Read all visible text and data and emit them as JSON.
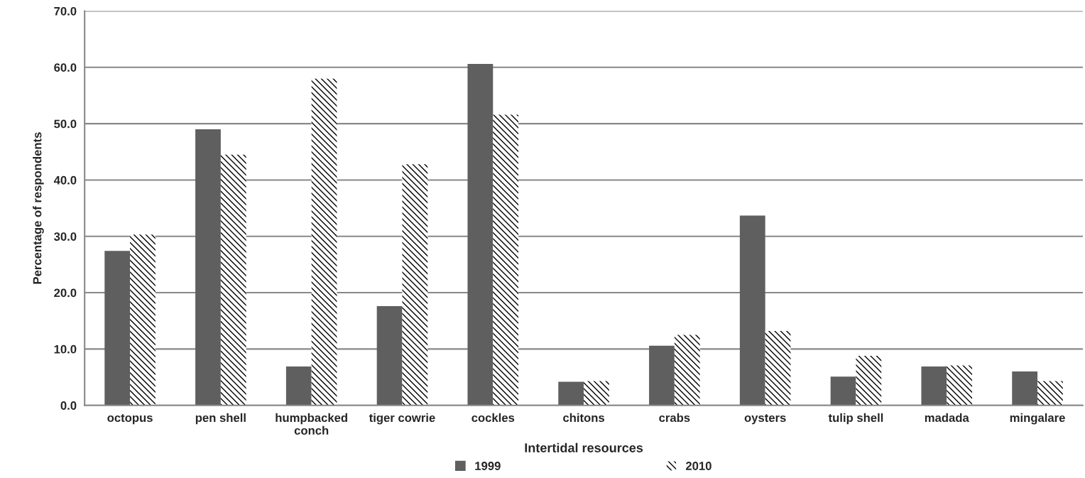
{
  "chart_data": {
    "type": "bar",
    "xlabel": "Intertidal resources",
    "ylabel": "Percentage of respondents",
    "categories": [
      "octopus",
      "pen shell",
      "humpbacked\nconch",
      "tiger cowrie",
      "cockles",
      "chitons",
      "crabs",
      "oysters",
      "tulip shell",
      "madada",
      "mingalare"
    ],
    "series": [
      {
        "name": "1999",
        "color": "#5f5f5f",
        "values": [
          27.4,
          49.0,
          6.9,
          17.6,
          60.6,
          4.2,
          10.6,
          33.7,
          5.1,
          6.9,
          6.0
        ]
      },
      {
        "name": "2010",
        "color": "#000000",
        "values": [
          30.3,
          44.5,
          58.0,
          42.8,
          51.6,
          4.3,
          12.5,
          13.2,
          8.8,
          7.1,
          4.3
        ]
      }
    ],
    "ylim": [
      0,
      70
    ],
    "yticks": [
      {
        "value": 0,
        "label": "0.0"
      },
      {
        "value": 10,
        "label": "10.0"
      },
      {
        "value": 20,
        "label": "20.0"
      },
      {
        "value": 30,
        "label": "30.0"
      },
      {
        "value": 40,
        "label": "40.0"
      },
      {
        "value": 50,
        "label": "50.0"
      },
      {
        "value": 60,
        "label": "60.0"
      },
      {
        "value": 70,
        "label": "70.0"
      }
    ],
    "grid": "y",
    "legend": "bottom"
  }
}
